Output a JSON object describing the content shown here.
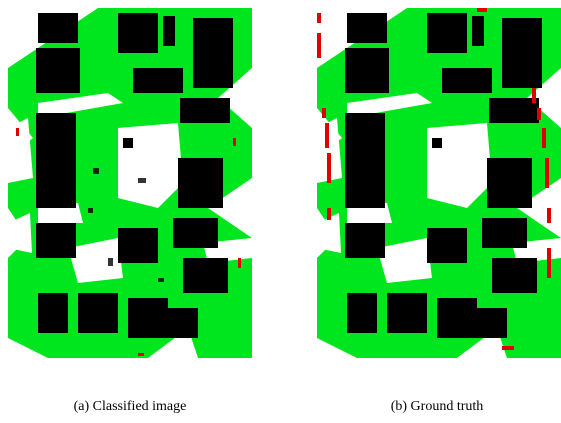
{
  "figure": {
    "panels": [
      {
        "caption": "(a) Classified image"
      },
      {
        "caption": "(b) Ground truth"
      }
    ]
  }
}
